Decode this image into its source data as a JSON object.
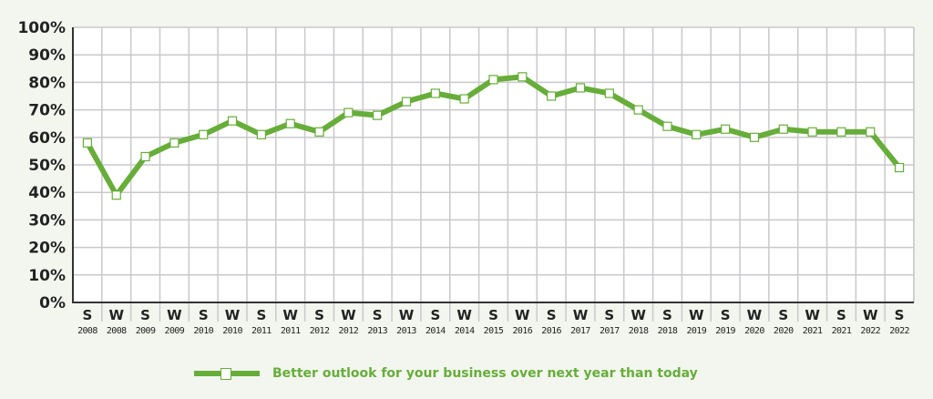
{
  "chart_data": {
    "type": "line",
    "title": "",
    "xlabel": "",
    "ylabel": "",
    "ylim": [
      0,
      100
    ],
    "y_ticks": [
      "0%",
      "10%",
      "20%",
      "30%",
      "40%",
      "50%",
      "60%",
      "70%",
      "80%",
      "90%",
      "100%"
    ],
    "grid": true,
    "legend_position": "bottom",
    "categories": [
      {
        "season": "S",
        "year": "2008"
      },
      {
        "season": "W",
        "year": "2008"
      },
      {
        "season": "S",
        "year": "2009"
      },
      {
        "season": "W",
        "year": "2009"
      },
      {
        "season": "S",
        "year": "2010"
      },
      {
        "season": "W",
        "year": "2010"
      },
      {
        "season": "S",
        "year": "2011"
      },
      {
        "season": "W",
        "year": "2011"
      },
      {
        "season": "S",
        "year": "2012"
      },
      {
        "season": "W",
        "year": "2012"
      },
      {
        "season": "S",
        "year": "2013"
      },
      {
        "season": "W",
        "year": "2013"
      },
      {
        "season": "S",
        "year": "2014"
      },
      {
        "season": "W",
        "year": "2014"
      },
      {
        "season": "S",
        "year": "2015"
      },
      {
        "season": "W",
        "year": "2016"
      },
      {
        "season": "S",
        "year": "2016"
      },
      {
        "season": "W",
        "year": "2017"
      },
      {
        "season": "S",
        "year": "2017"
      },
      {
        "season": "W",
        "year": "2018"
      },
      {
        "season": "S",
        "year": "2018"
      },
      {
        "season": "W",
        "year": "2019"
      },
      {
        "season": "S",
        "year": "2019"
      },
      {
        "season": "W",
        "year": "2020"
      },
      {
        "season": "S",
        "year": "2020"
      },
      {
        "season": "W",
        "year": "2021"
      },
      {
        "season": "S",
        "year": "2021"
      },
      {
        "season": "W",
        "year": "2022"
      },
      {
        "season": "S",
        "year": "2022"
      }
    ],
    "series": [
      {
        "name": "Better outlook for your business over next year than today",
        "color": "#67ad3a",
        "marker": "open-square",
        "values": [
          58,
          39,
          53,
          58,
          61,
          66,
          61,
          65,
          62,
          69,
          68,
          73,
          76,
          74,
          81,
          82,
          75,
          78,
          76,
          70,
          64,
          61,
          63,
          60,
          63,
          62,
          62,
          62,
          49
        ]
      }
    ]
  },
  "legend": {
    "label": "Better outlook for your business over next year than today"
  },
  "colors": {
    "background": "#f2f6ee",
    "plot_background": "#ffffff",
    "grid": "#c9c9cc",
    "axis": "#333333",
    "series": "#67ad3a"
  }
}
